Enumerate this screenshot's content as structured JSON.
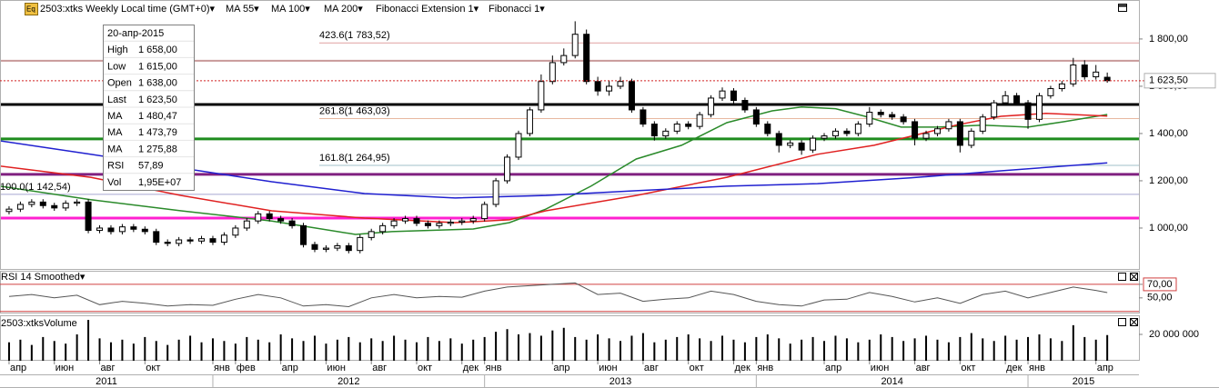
{
  "chart_data": [
    {
      "type": "candlestick",
      "icon": "Eq",
      "title": "2503:xtks Weekly Local time (GMT+0)▾",
      "studies": [
        {
          "name": "Fibonacci Extension 1▾",
          "color": "#000000"
        },
        {
          "name": "Fibonacci 1▾",
          "color": "#000000"
        }
      ],
      "x": [
        3,
        3.5,
        4,
        4.5,
        5,
        5.5,
        6,
        6.5,
        7,
        7.5,
        8,
        8.5,
        9,
        9.5,
        10,
        10.5,
        11,
        11.5,
        12,
        12.5,
        13,
        13.5,
        14,
        14.5,
        15,
        15.5,
        16,
        16.5,
        17,
        17.5,
        18,
        18.5,
        19,
        19.5,
        20,
        20.5,
        21,
        21.5,
        22,
        22.5,
        23,
        23.5,
        24,
        24.5,
        25,
        25.5,
        26,
        26.5,
        27,
        27.5,
        28,
        28.5,
        29,
        29.5,
        30,
        30.5,
        31,
        31.5,
        32,
        32.5,
        33,
        33.5,
        34,
        34.5,
        35,
        35.5,
        36,
        36.5,
        37,
        37.5,
        38,
        38.5,
        39,
        39.5,
        40,
        40.5,
        41,
        41.5,
        42,
        42.5,
        43,
        43.5,
        44,
        44.5,
        45,
        45.5,
        46,
        46.5,
        47,
        47.5,
        48,
        48.5,
        49,
        49.5,
        50,
        50.5,
        51,
        51.5
      ],
      "open": [
        1070,
        1080,
        1100,
        1110,
        1095,
        1085,
        1105,
        1110,
        990,
        1000,
        985,
        1005,
        995,
        985,
        940,
        935,
        950,
        945,
        955,
        940,
        970,
        1000,
        1030,
        1060,
        1040,
        1030,
        1010,
        930,
        910,
        915,
        925,
        905,
        960,
        985,
        1010,
        1030,
        1040,
        1020,
        1010,
        1020,
        1025,
        1030,
        1040,
        1100,
        1200,
        1300,
        1400,
        1500,
        1620,
        1700,
        1730,
        1820,
        1620,
        1580,
        1600,
        1620,
        1500,
        1440,
        1390,
        1410,
        1440,
        1430,
        1480,
        1550,
        1580,
        1540,
        1500,
        1440,
        1400,
        1350,
        1360,
        1330,
        1380,
        1390,
        1410,
        1400,
        1440,
        1490,
        1480,
        1470,
        1450,
        1380,
        1400,
        1420,
        1450,
        1350,
        1410,
        1470,
        1530,
        1560,
        1530,
        1460,
        1560,
        1590,
        1610,
        1690,
        1640,
        1638
      ],
      "high": [
        1092,
        1112,
        1122,
        1122,
        1107,
        1117,
        1122,
        1122,
        1012,
        1012,
        1017,
        1017,
        1007,
        997,
        952,
        962,
        962,
        967,
        967,
        982,
        1012,
        1042,
        1072,
        1072,
        1052,
        1042,
        1022,
        942,
        927,
        937,
        937,
        972,
        997,
        1022,
        1042,
        1052,
        1052,
        1032,
        1032,
        1037,
        1042,
        1052,
        1112,
        1212,
        1312,
        1412,
        1512,
        1650,
        1730,
        1760,
        1875,
        1840,
        1640,
        1625,
        1640,
        1632,
        1512,
        1452,
        1422,
        1452,
        1452,
        1492,
        1562,
        1595,
        1592,
        1552,
        1512,
        1452,
        1412,
        1372,
        1372,
        1392,
        1402,
        1422,
        1422,
        1452,
        1512,
        1502,
        1492,
        1482,
        1462,
        1412,
        1432,
        1462,
        1462,
        1422,
        1482,
        1542,
        1580,
        1572,
        1542,
        1572,
        1602,
        1622,
        1720,
        1710,
        1690,
        1658
      ],
      "low": [
        1058,
        1068,
        1088,
        1083,
        1073,
        1073,
        1093,
        978,
        978,
        973,
        973,
        983,
        973,
        928,
        923,
        923,
        933,
        933,
        928,
        928,
        958,
        988,
        1018,
        1028,
        1018,
        998,
        918,
        898,
        898,
        903,
        893,
        893,
        948,
        973,
        998,
        1018,
        1008,
        998,
        998,
        1008,
        1013,
        1018,
        1028,
        1088,
        1188,
        1288,
        1388,
        1488,
        1608,
        1688,
        1718,
        1608,
        1560,
        1560,
        1588,
        1488,
        1428,
        1370,
        1378,
        1398,
        1418,
        1418,
        1468,
        1538,
        1528,
        1488,
        1428,
        1388,
        1320,
        1338,
        1310,
        1318,
        1368,
        1378,
        1388,
        1388,
        1428,
        1468,
        1458,
        1438,
        1350,
        1368,
        1388,
        1408,
        1320,
        1338,
        1398,
        1458,
        1518,
        1518,
        1420,
        1448,
        1548,
        1578,
        1598,
        1628,
        1628,
        1615
      ],
      "close": [
        1080,
        1100,
        1110,
        1095,
        1085,
        1105,
        1110,
        990,
        1000,
        985,
        1005,
        995,
        985,
        940,
        935,
        950,
        945,
        955,
        940,
        970,
        1000,
        1030,
        1060,
        1040,
        1030,
        1010,
        930,
        910,
        915,
        925,
        905,
        960,
        985,
        1010,
        1030,
        1040,
        1020,
        1010,
        1020,
        1025,
        1030,
        1040,
        1100,
        1200,
        1300,
        1400,
        1500,
        1620,
        1700,
        1730,
        1820,
        1620,
        1580,
        1600,
        1620,
        1500,
        1440,
        1390,
        1410,
        1440,
        1430,
        1480,
        1550,
        1580,
        1540,
        1500,
        1440,
        1400,
        1350,
        1360,
        1330,
        1380,
        1390,
        1410,
        1400,
        1440,
        1490,
        1480,
        1470,
        1450,
        1380,
        1400,
        1420,
        1450,
        1350,
        1410,
        1470,
        1530,
        1560,
        1530,
        1460,
        1560,
        1590,
        1610,
        1690,
        1640,
        1660,
        1623.5
      ],
      "up_color": "#ffffff",
      "down_color": "#000000",
      "outline_color": "#000000",
      "xlim": [
        2.6,
        52.9
      ],
      "ylim": [
        823,
        1965
      ],
      "yticks": [
        {
          "value": 1000,
          "label": "1 000,00"
        },
        {
          "value": 1200,
          "label": "1 200,00"
        },
        {
          "value": 1400,
          "label": "1 400,00"
        },
        {
          "value": 1600,
          "label": "1 600,00"
        },
        {
          "value": 1800,
          "label": "1 800,00"
        }
      ],
      "series": [
        {
          "name": "MA 55▾",
          "color": "#2a8a2a",
          "x": [
            2.6,
            6.6,
            10.6,
            14.6,
            18.3,
            19.9,
            23.5,
            25.1,
            26.7,
            28.7,
            30.7,
            32.7,
            34.7,
            36.7,
            38.0,
            39.5,
            40.8,
            42.4,
            44.0,
            46.0,
            48.0,
            49.6,
            51.5
          ],
          "values": [
            1177,
            1120,
            1073,
            1030,
            973,
            985,
            996,
            1023,
            1080,
            1177,
            1292,
            1350,
            1446,
            1496,
            1512,
            1505,
            1473,
            1427,
            1427,
            1435,
            1427,
            1450,
            1480.47
          ]
        },
        {
          "name": "MA 100▾",
          "color": "#e02020",
          "x": [
            2.6,
            6.6,
            10.6,
            14.6,
            18.7,
            22.7,
            25.1,
            26.7,
            30.7,
            34.7,
            38.7,
            41.2,
            42.8,
            44.8,
            46.8,
            48.8,
            51.5
          ],
          "values": [
            1262,
            1215,
            1138,
            1073,
            1042,
            1023,
            1035,
            1073,
            1138,
            1215,
            1312,
            1350,
            1388,
            1435,
            1473,
            1485,
            1473.79
          ]
        },
        {
          "name": "MA 200▾",
          "color": "#2020d0",
          "x": [
            2.6,
            6.6,
            10.6,
            14.6,
            18.7,
            22.7,
            26.7,
            30.7,
            34.7,
            38.7,
            42.8,
            46.8,
            51.5
          ],
          "values": [
            1369,
            1312,
            1254,
            1196,
            1146,
            1127,
            1138,
            1158,
            1177,
            1188,
            1212,
            1242,
            1275.88
          ]
        }
      ],
      "levels": [
        {
          "value": 1708,
          "color": "#c89a9a",
          "width": 2
        },
        {
          "value": 1523,
          "color": "#000000",
          "width": 3
        },
        {
          "value": 1377,
          "color": "#1e8c1e",
          "width": 3
        },
        {
          "value": 1227,
          "color": "#802080",
          "width": 3
        },
        {
          "value": 1042,
          "color": "#ff20d0",
          "width": 3
        }
      ],
      "fibonacci": [
        {
          "value": 1783.52,
          "label": "423.6(1 783,52)",
          "color": "#d02020",
          "line_color": "#e0a0a0",
          "start": 16.7
        },
        {
          "value": 1463.03,
          "label": "261.8(1 463,03)",
          "color": "#c86414",
          "line_color": "#e8b8a0",
          "start": 16.7
        },
        {
          "value": 1264.95,
          "label": "161.8(1 264,95)",
          "color": "#4a8a9a",
          "line_color": "#a0c0c8",
          "start": 16.7
        },
        {
          "value": 1142.54,
          "label": "100.0(1 142,54)",
          "color": "#2020a0",
          "line_color": "#a8a8d0",
          "start": 2.6
        }
      ],
      "last_price": {
        "value": 1623.5,
        "label": "1 623,50",
        "color": "#d02020"
      },
      "info": {
        "date": "20-апр-2015",
        "rows": [
          {
            "label": "High",
            "value": "1 658,00",
            "color": "#000000"
          },
          {
            "label": "Low",
            "value": "1 615,00",
            "color": "#000000"
          },
          {
            "label": "Open",
            "value": "1 638,00",
            "color": "#000000"
          },
          {
            "label": "Last",
            "value": "1 623,50",
            "color": "#000000"
          },
          {
            "label": "MA",
            "value": "1 480,47",
            "color": "#2a8a2a"
          },
          {
            "label": "MA",
            "value": "1 473,79",
            "color": "#e02020"
          },
          {
            "label": "MA",
            "value": "1 275,88",
            "color": "#2020d0"
          },
          {
            "label": "RSI",
            "value": "57,89",
            "color": "#000000"
          },
          {
            "label": "Vol",
            "value": "1,95E+07",
            "color": "#000000"
          }
        ]
      }
    },
    {
      "type": "line",
      "title": "RSI 14 Smoothed▾",
      "color": "#555555",
      "x": [
        3,
        4,
        5,
        6,
        7,
        8,
        9,
        10,
        11,
        12,
        13,
        14,
        15,
        16,
        17,
        18,
        19,
        20,
        21,
        22,
        23,
        24,
        25,
        26,
        27,
        28,
        29,
        30,
        31,
        32,
        33,
        34,
        35,
        36,
        37,
        38,
        39,
        40,
        41,
        42,
        43,
        44,
        45,
        46,
        47,
        48,
        49,
        50,
        51,
        51.5
      ],
      "values": [
        52,
        55,
        50,
        54,
        40,
        45,
        42,
        38,
        40,
        39,
        48,
        55,
        50,
        38,
        40,
        37,
        50,
        55,
        50,
        52,
        51,
        60,
        66,
        68,
        70,
        72,
        55,
        57,
        45,
        48,
        50,
        60,
        55,
        45,
        40,
        38,
        47,
        48,
        58,
        52,
        44,
        50,
        42,
        55,
        60,
        50,
        58,
        66,
        61,
        57.89
      ],
      "xlim": [
        2.6,
        52.9
      ],
      "ylim": [
        27,
        90
      ],
      "yticks": [
        {
          "value": 70,
          "label": "70,00"
        },
        {
          "value": 50,
          "label": "50,00"
        }
      ],
      "levels": [
        {
          "value": 70,
          "color": "#d04040"
        },
        {
          "value": 30,
          "color": "#d04040"
        }
      ]
    },
    {
      "type": "bar",
      "title": "2503:xtksVolume",
      "color": "#000000",
      "x": [
        3,
        3.5,
        4,
        4.5,
        5,
        5.5,
        6,
        6.5,
        7,
        7.5,
        8,
        8.5,
        9,
        9.5,
        10,
        10.5,
        11,
        11.5,
        12,
        12.5,
        13,
        13.5,
        14,
        14.5,
        15,
        15.5,
        16,
        16.5,
        17,
        17.5,
        18,
        18.5,
        19,
        19.5,
        20,
        20.5,
        21,
        21.5,
        22,
        22.5,
        23,
        23.5,
        24,
        24.5,
        25,
        25.5,
        26,
        26.5,
        27,
        27.5,
        28,
        28.5,
        29,
        29.5,
        30,
        30.5,
        31,
        31.5,
        32,
        32.5,
        33,
        33.5,
        34,
        34.5,
        35,
        35.5,
        36,
        36.5,
        37,
        37.5,
        38,
        38.5,
        39,
        39.5,
        40,
        40.5,
        41,
        41.5,
        42,
        42.5,
        43,
        43.5,
        44,
        44.5,
        45,
        45.5,
        46,
        46.5,
        47,
        47.5,
        48,
        48.5,
        49,
        49.5,
        50,
        50.5,
        51,
        51.5
      ],
      "values": [
        14000000,
        16000000,
        12000000,
        18000000,
        15000000,
        13000000,
        20000000,
        31000000,
        17000000,
        14000000,
        16000000,
        13000000,
        18000000,
        15000000,
        12000000,
        16000000,
        19000000,
        14000000,
        17000000,
        15000000,
        13000000,
        18000000,
        16000000,
        14000000,
        20000000,
        17000000,
        15000000,
        19000000,
        13000000,
        16000000,
        18000000,
        14000000,
        17000000,
        15000000,
        19000000,
        16000000,
        14000000,
        18000000,
        15000000,
        17000000,
        13000000,
        16000000,
        18000000,
        22000000,
        24000000,
        20000000,
        21000000,
        19000000,
        23000000,
        25000000,
        18000000,
        16000000,
        20000000,
        17000000,
        15000000,
        19000000,
        21000000,
        14000000,
        16000000,
        18000000,
        20000000,
        17000000,
        15000000,
        19000000,
        16000000,
        14000000,
        18000000,
        20000000,
        17000000,
        13000000,
        16000000,
        18000000,
        15000000,
        19000000,
        17000000,
        14000000,
        16000000,
        20000000,
        18000000,
        15000000,
        17000000,
        19000000,
        16000000,
        14000000,
        18000000,
        21000000,
        17000000,
        15000000,
        19000000,
        16000000,
        18000000,
        20000000,
        17000000,
        15000000,
        27000000,
        18000000,
        16000000,
        19500000
      ],
      "xlim": [
        2.6,
        52.9
      ],
      "ylim": [
        0,
        34500000
      ],
      "yticks": [
        {
          "value": 20000000,
          "label": "20 000 000"
        }
      ],
      "xticks": [
        {
          "value": 3,
          "label": "апр"
        },
        {
          "value": 5,
          "label": "июн"
        },
        {
          "value": 7,
          "label": "авг"
        },
        {
          "value": 9,
          "label": "окт"
        },
        {
          "value": 12,
          "label": "янв"
        },
        {
          "value": 13,
          "label": "фев"
        },
        {
          "value": 15,
          "label": "апр"
        },
        {
          "value": 17,
          "label": "июн"
        },
        {
          "value": 19,
          "label": "авг"
        },
        {
          "value": 21,
          "label": "окт"
        },
        {
          "value": 23,
          "label": "дек"
        },
        {
          "value": 24,
          "label": "янв"
        },
        {
          "value": 27,
          "label": "апр"
        },
        {
          "value": 29,
          "label": "июн"
        },
        {
          "value": 31,
          "label": "авг"
        },
        {
          "value": 33,
          "label": "окт"
        },
        {
          "value": 35,
          "label": "дек"
        },
        {
          "value": 36,
          "label": "янв"
        },
        {
          "value": 39,
          "label": "апр"
        },
        {
          "value": 41,
          "label": "июн"
        },
        {
          "value": 43,
          "label": "авг"
        },
        {
          "value": 45,
          "label": "окт"
        },
        {
          "value": 47,
          "label": "дек"
        },
        {
          "value": 48,
          "label": "янв"
        },
        {
          "value": 51,
          "label": "апр"
        }
      ],
      "years": [
        {
          "value": 0,
          "label": "2011"
        },
        {
          "value": 12,
          "label": "2012"
        },
        {
          "value": 24,
          "label": "2013"
        },
        {
          "value": 36,
          "label": "2014"
        },
        {
          "value": 48,
          "label": "2015"
        }
      ]
    }
  ]
}
